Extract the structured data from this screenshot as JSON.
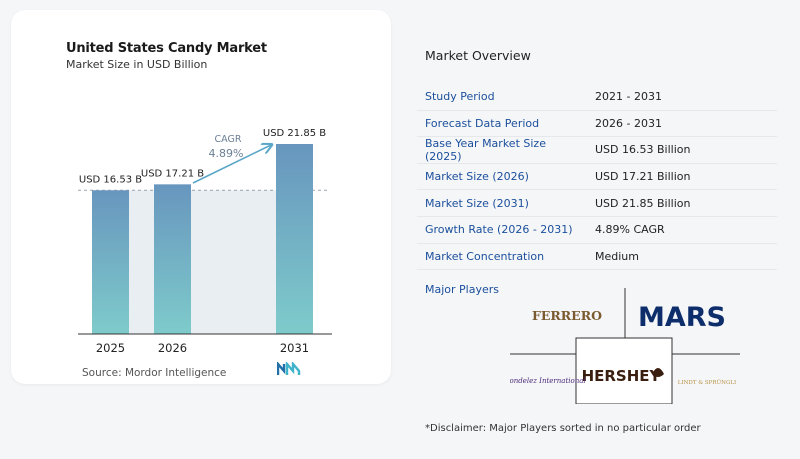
{
  "header": {
    "title": "United States Candy Market",
    "subtitle": "Market Size in USD Billion"
  },
  "chart_data": {
    "type": "bar",
    "categories": [
      "2025",
      "2026",
      "2031"
    ],
    "values": [
      16.53,
      17.21,
      21.85
    ],
    "value_labels": [
      "USD 16.53 B",
      "USD 17.21 B",
      "USD 21.85 B"
    ],
    "title": "United States Candy Market",
    "subtitle": "Market Size in USD Billion",
    "annotation": {
      "label": "CAGR",
      "value": "4.89%"
    },
    "colors": {
      "bar_top": "#6896be",
      "bar_bottom": "#7ecbcb",
      "band": "#e9eef3",
      "arrow": "#5aa7c8",
      "cagr_text": "#6b7f95"
    },
    "grid": false
  },
  "source": {
    "text": "Source:  Mordor Intelligence",
    "logo_icon": "mordor-intelligence-logo"
  },
  "overview": {
    "title": "Market Overview",
    "rows": [
      {
        "label": "Study Period",
        "value": "2021 - 2031"
      },
      {
        "label": "Forecast Data Period",
        "value": "2026 - 2031"
      },
      {
        "label": "Base Year Market Size (2025)",
        "value": "USD 16.53 Billion"
      },
      {
        "label": "Market Size (2026)",
        "value": "USD 17.21 Billion"
      },
      {
        "label": "Market Size (2031)",
        "value": "USD 21.85 Billion"
      },
      {
        "label": "Growth Rate (2026 - 2031)",
        "value": "4.89% CAGR"
      },
      {
        "label": "Market Concentration",
        "value": "Medium"
      }
    ]
  },
  "players": {
    "title": "Major Players",
    "logos": [
      "FERRERO",
      "MARS",
      "HERSHEY",
      "Mondelez International",
      "LINDT & SPRÜNGLI"
    ]
  },
  "disclaimer": "*Disclaimer: Major Players sorted in no particular order"
}
